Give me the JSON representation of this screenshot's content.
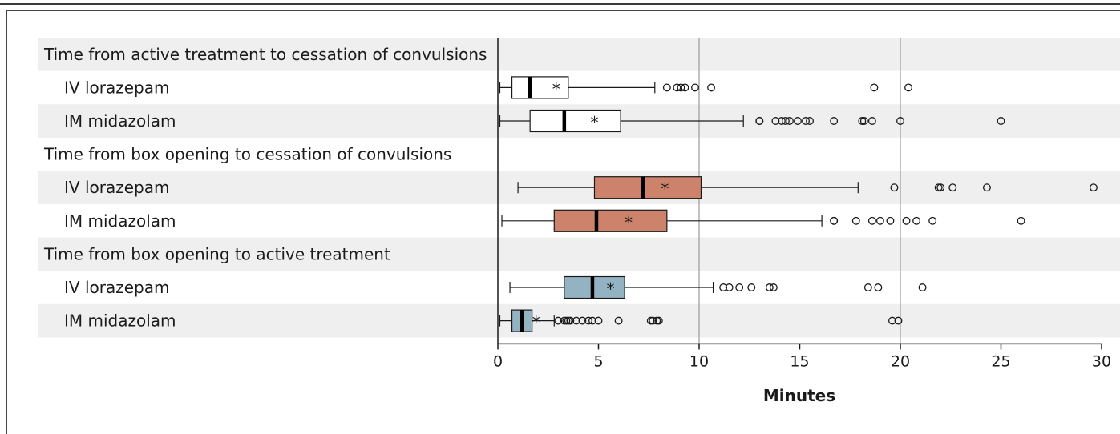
{
  "chart_data": {
    "type": "boxplot",
    "xlabel": "Minutes",
    "xlim": [
      0,
      30
    ],
    "xticks": [
      0,
      5,
      10,
      15,
      20,
      25,
      30
    ],
    "grid_x_at": [
      10,
      20
    ],
    "groups": [
      {
        "title": "Time from active treatment to cessation of convulsions",
        "color": "#ffffff",
        "rows": [
          {
            "label": "IV lorazepam",
            "whisker_low": 0.1,
            "q1": 0.7,
            "median": 1.6,
            "q3": 3.5,
            "whisker_high": 7.8,
            "mean": 2.9,
            "outliers": [
              8.4,
              8.9,
              9.1,
              9.3,
              9.8,
              10.6,
              18.7,
              20.4
            ]
          },
          {
            "label": "IM midazolam",
            "whisker_low": 0.1,
            "q1": 1.6,
            "median": 3.3,
            "q3": 6.1,
            "whisker_high": 12.2,
            "mean": 4.8,
            "outliers": [
              13.0,
              13.0,
              13.8,
              14.1,
              14.3,
              14.5,
              14.9,
              15.3,
              15.5,
              16.7,
              18.1,
              18.2,
              18.6,
              20.0,
              25.0
            ]
          }
        ]
      },
      {
        "title": "Time from box opening to cessation of convulsions",
        "color": "#cd826c",
        "rows": [
          {
            "label": "IV lorazepam",
            "whisker_low": 1.0,
            "q1": 4.8,
            "median": 7.2,
            "q3": 10.1,
            "whisker_high": 17.9,
            "mean": 8.3,
            "outliers": [
              19.7,
              21.9,
              22.0,
              22.6,
              24.3,
              29.6
            ]
          },
          {
            "label": "IM midazolam",
            "whisker_low": 0.2,
            "q1": 2.8,
            "median": 4.9,
            "q3": 8.4,
            "whisker_high": 16.1,
            "mean": 6.5,
            "outliers": [
              16.7,
              16.7,
              17.8,
              18.6,
              19.0,
              19.5,
              20.3,
              20.8,
              21.6,
              26.0
            ]
          }
        ]
      },
      {
        "title": "Time from box opening to active treatment",
        "color": "#94b3c2",
        "rows": [
          {
            "label": "IV lorazepam",
            "whisker_low": 0.6,
            "q1": 3.3,
            "median": 4.7,
            "q3": 6.3,
            "whisker_high": 10.7,
            "mean": 5.6,
            "outliers": [
              11.2,
              11.5,
              12.0,
              12.6,
              13.5,
              13.7,
              18.4,
              18.9,
              21.1
            ]
          },
          {
            "label": "IM midazolam",
            "whisker_low": 0.1,
            "q1": 0.7,
            "median": 1.2,
            "q3": 1.7,
            "whisker_high": 2.8,
            "mean": 1.9,
            "outliers": [
              3.0,
              3.3,
              3.4,
              3.5,
              3.6,
              3.9,
              4.2,
              4.5,
              4.7,
              5.0,
              6.0,
              7.6,
              7.7,
              7.9,
              8.0,
              19.6,
              19.9
            ]
          }
        ]
      }
    ]
  }
}
